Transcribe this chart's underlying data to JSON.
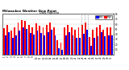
{
  "title": "Milwaukee Weather Dew Point",
  "subtitle": "Daily High/Low",
  "high_color": "#ff0000",
  "low_color": "#0000ff",
  "background_color": "#ffffff",
  "ylim": [
    0,
    80
  ],
  "yticks": [
    10,
    20,
    30,
    40,
    50,
    60,
    70,
    80
  ],
  "days": [
    "1",
    "2",
    "3",
    "4",
    "5",
    "6",
    "7",
    "8",
    "9",
    "10",
    "11",
    "12",
    "13",
    "14",
    "15",
    "16",
    "17",
    "18",
    "19",
    "20",
    "21",
    "22",
    "23",
    "24",
    "25",
    "26",
    "27",
    "28",
    "29",
    "30",
    "31"
  ],
  "high": [
    52,
    58,
    48,
    53,
    63,
    68,
    66,
    58,
    54,
    61,
    57,
    53,
    59,
    63,
    53,
    28,
    24,
    54,
    59,
    53,
    49,
    53,
    59,
    63,
    34,
    49,
    54,
    59,
    49,
    54,
    54
  ],
  "low": [
    38,
    44,
    33,
    38,
    48,
    53,
    51,
    43,
    39,
    47,
    42,
    38,
    44,
    49,
    38,
    13,
    9,
    38,
    44,
    38,
    33,
    33,
    41,
    49,
    18,
    33,
    37,
    44,
    36,
    38,
    38
  ],
  "dashed_cols": [
    22,
    23
  ],
  "bar_width": 0.42
}
